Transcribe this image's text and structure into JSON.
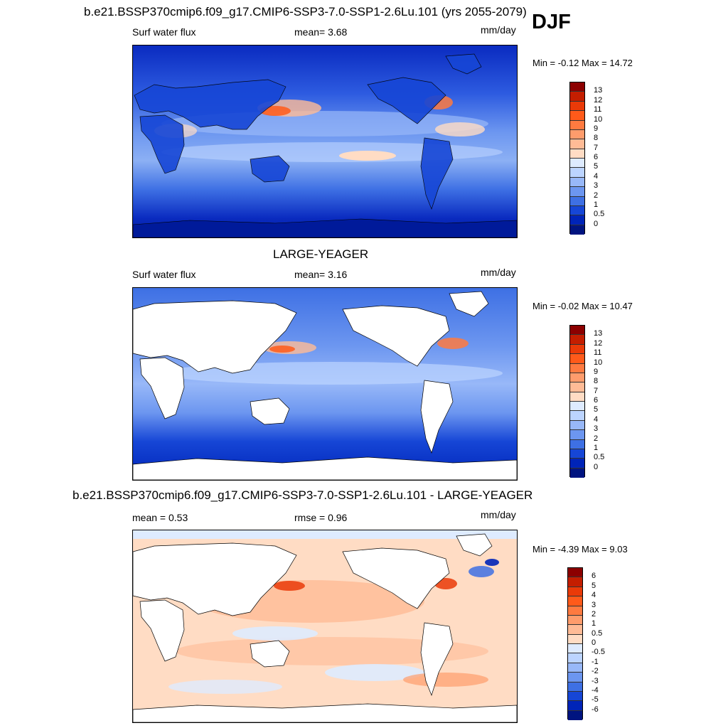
{
  "season": "DJF",
  "panels": [
    {
      "title": "b.e21.BSSP370cmip6.f09_g17.CMIP6-SSP3-7.0-SSP1-2.6Lu.101 (yrs 2055-2079)",
      "left_label": "Surf water flux",
      "center_label": "mean=   3.68",
      "units": "mm/day",
      "minmax": "Min =  -0.12 Max =  14.72",
      "levels": [
        "13",
        "12",
        "11",
        "10",
        "9",
        "8",
        "7",
        "6",
        "5",
        "4",
        "3",
        "2",
        "1",
        "0.5",
        "0"
      ],
      "colors": [
        "#8c0000",
        "#c41e00",
        "#ea3a08",
        "#ff5a1a",
        "#ff7a40",
        "#ff9c6c",
        "#ffbb96",
        "#ffdcc4",
        "#deebff",
        "#bcd4ff",
        "#98b8f8",
        "#6c96f0",
        "#3e70e4",
        "#1646d6",
        "#0024b8",
        "#001480"
      ],
      "stats": {
        "min": -0.12,
        "max": 14.72,
        "mean": 3.68
      }
    },
    {
      "title": "LARGE-YEAGER",
      "left_label": "Surf water flux",
      "center_label": "mean=   3.16",
      "units": "mm/day",
      "minmax": "Min =  -0.02 Max =  10.47",
      "levels": [
        "13",
        "12",
        "11",
        "10",
        "9",
        "8",
        "7",
        "6",
        "5",
        "4",
        "3",
        "2",
        "1",
        "0.5",
        "0"
      ],
      "colors": [
        "#8c0000",
        "#c41e00",
        "#ea3a08",
        "#ff5a1a",
        "#ff7a40",
        "#ff9c6c",
        "#ffbb96",
        "#ffdcc4",
        "#deebff",
        "#bcd4ff",
        "#98b8f8",
        "#6c96f0",
        "#3e70e4",
        "#1646d6",
        "#0024b8",
        "#001480"
      ],
      "stats": {
        "min": -0.02,
        "max": 10.47,
        "mean": 3.16
      }
    },
    {
      "title": "b.e21.BSSP370cmip6.f09_g17.CMIP6-SSP3-7.0-SSP1-2.6Lu.101 - LARGE-YEAGER",
      "left_label": "mean =   0.53",
      "center_label": "rmse =   0.96",
      "units": "mm/day",
      "minmax": "Min =  -4.39 Max =   9.03",
      "levels": [
        "6",
        "5",
        "4",
        "3",
        "2",
        "1",
        "0.5",
        "0",
        "-0.5",
        "-1",
        "-2",
        "-3",
        "-4",
        "-5",
        "-6"
      ],
      "colors": [
        "#8c0000",
        "#c41e00",
        "#ea3a08",
        "#ff5a1a",
        "#ff7a40",
        "#ff9c6c",
        "#ffbb96",
        "#ffdcc4",
        "#deebff",
        "#bcd4ff",
        "#98b8f8",
        "#6c96f0",
        "#3e70e4",
        "#1646d6",
        "#0024b8",
        "#001480"
      ],
      "stats": {
        "min": -4.39,
        "max": 9.03,
        "mean": 0.53,
        "rmse": 0.96
      }
    }
  ]
}
